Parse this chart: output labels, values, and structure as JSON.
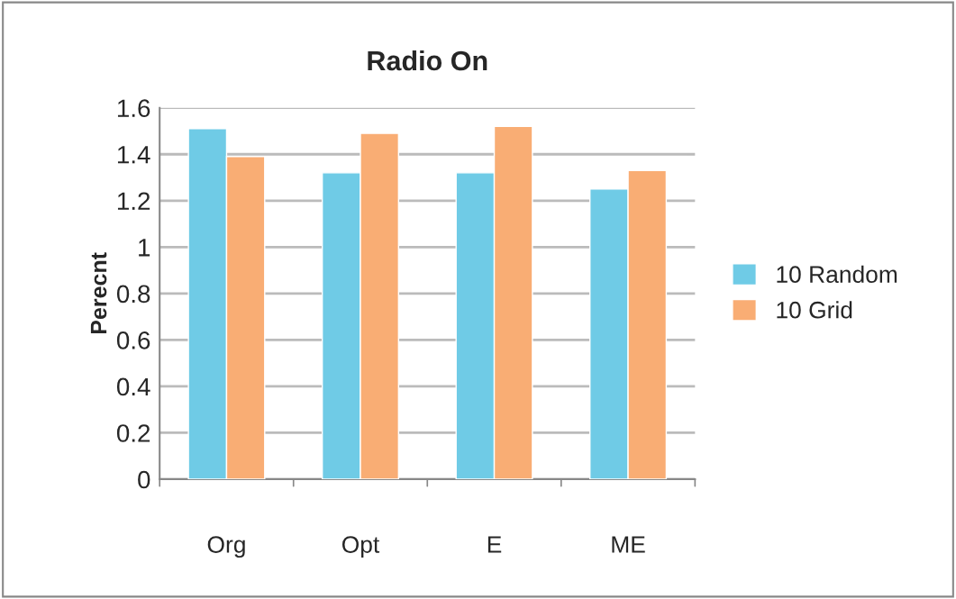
{
  "chart_data": {
    "type": "bar",
    "title": "Radio On",
    "ylabel": "Perecnt",
    "categories": [
      "Org",
      "Opt",
      "E",
      "ME"
    ],
    "series": [
      {
        "name": "10 Random",
        "color": "#6fcbe6",
        "values": [
          1.51,
          1.32,
          1.32,
          1.25
        ]
      },
      {
        "name": "10 Grid",
        "color": "#f9ad74",
        "values": [
          1.39,
          1.49,
          1.52,
          1.33
        ]
      }
    ],
    "ylim": [
      0,
      1.6
    ],
    "yticks": [
      0,
      0.2,
      0.4,
      0.6,
      0.8,
      1,
      1.2,
      1.4,
      1.6
    ],
    "grid": "y",
    "legend": "right"
  }
}
